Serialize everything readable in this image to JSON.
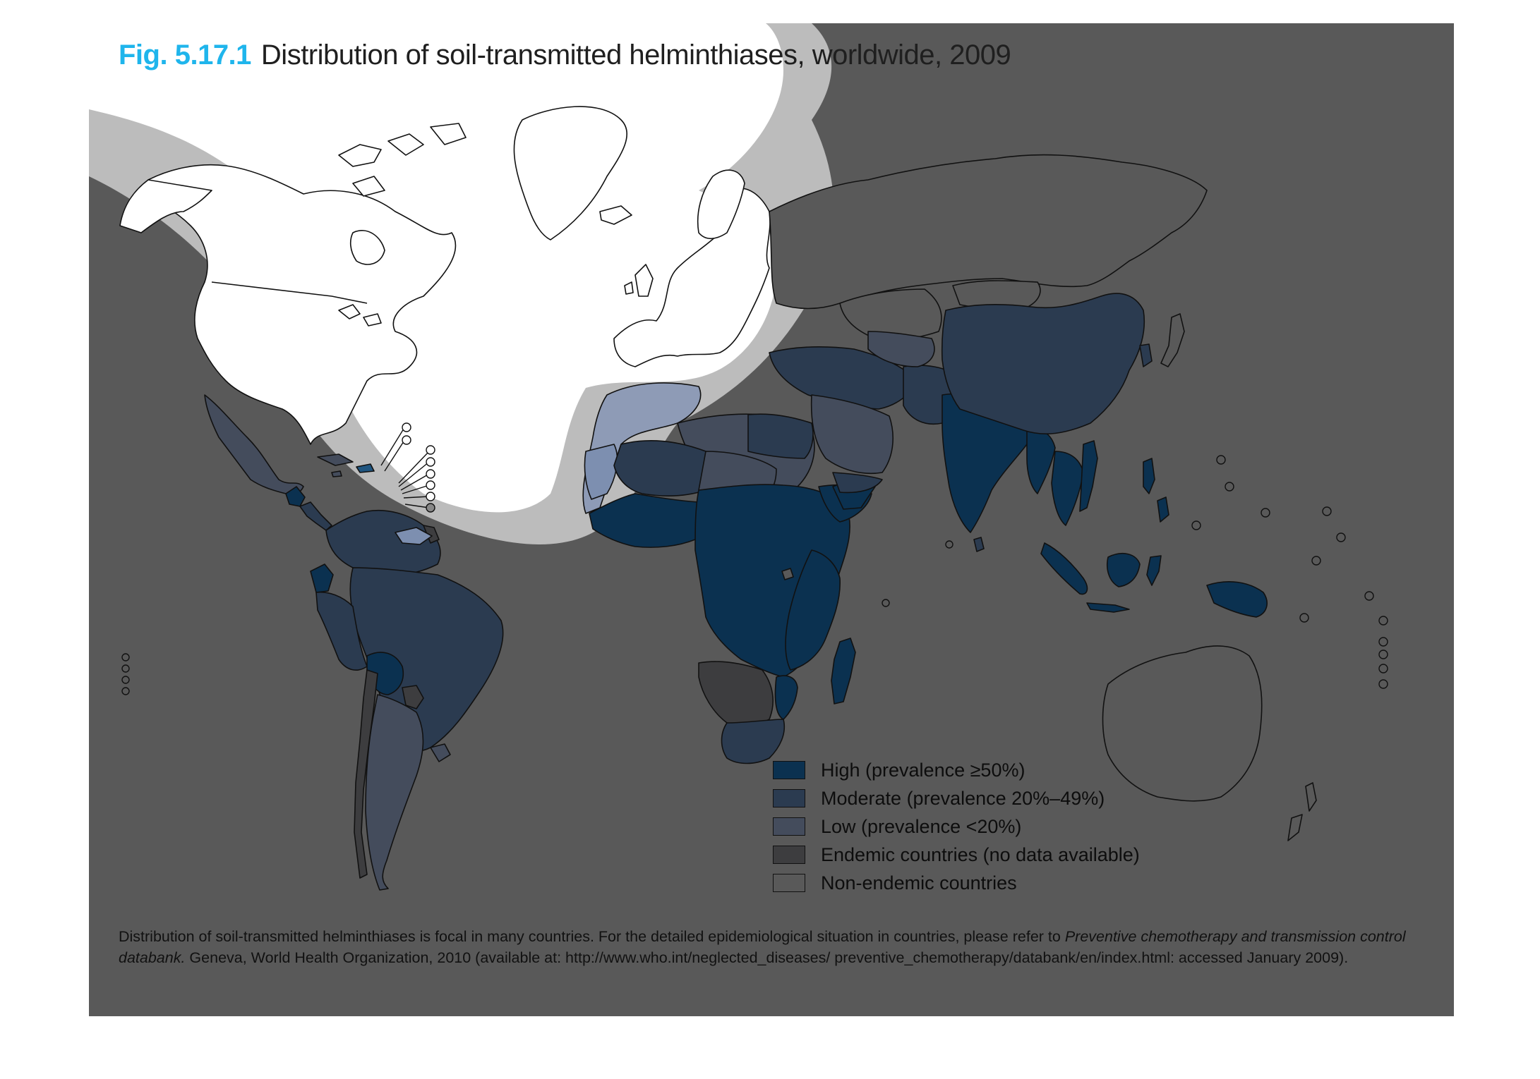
{
  "title": {
    "figure_number": "Fig. 5.17.1",
    "text": "Distribution of soil-transmitted helminthiases, worldwide, 2009"
  },
  "colors": {
    "panel": "#595959",
    "high": "#0b3150",
    "moderate": "#2b3b50",
    "low": "#444c5c",
    "endemic_no_data": "#3d3d3f",
    "non_endemic": "#ffffff",
    "halo": "#bcbcbc",
    "figure_number": "#1fb5ec"
  },
  "legend": [
    {
      "key": "high",
      "label": "High (prevalence ≥50%)"
    },
    {
      "key": "moderate",
      "label": "Moderate (prevalence 20%–49%)"
    },
    {
      "key": "low",
      "label": "Low (prevalence <20%)"
    },
    {
      "key": "endemic_no_data",
      "label": "Endemic countries (no data available)"
    },
    {
      "key": "non_endemic",
      "label": "Non-endemic countries"
    }
  ],
  "note": {
    "text_before": "Distribution of soil-transmitted helminthiases is focal in many countries. For the detailed epidemiological situation in countries, please refer to ",
    "italic": "Preventive chemotherapy and transmission control databank.",
    "text_after": " Geneva, World Health Organization, 2010 (available at: http://www.who.int/neglected_diseases/ preventive_chemotherapy/databank/en/index.html: accessed January 2009)."
  }
}
